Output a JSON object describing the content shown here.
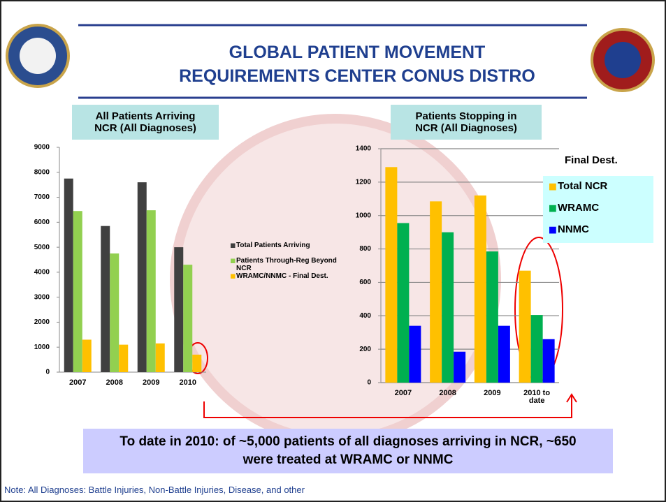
{
  "slide": {
    "title": "GLOBAL PATIENT MOVEMENT REQUIREMENTS CENTER CONUS DISTRO",
    "callout": "To date in 2010: of ~5,000 patients of all diagnoses arriving in NCR, ~650 were treated at WRAMC or NNMC",
    "note": "Note: All Diagnoses: Battle Injuries, Non-Battle Injuries, Disease, and other"
  },
  "chart_data": [
    {
      "type": "bar",
      "title": "All Patients Arriving NCR (All Diagnoses)",
      "categories": [
        "2007",
        "2008",
        "2009",
        "2010"
      ],
      "series": [
        {
          "name": "Total Patients Arriving",
          "color": "#404040",
          "values": [
            7750,
            5850,
            7600,
            5000
          ]
        },
        {
          "name": "Patients Through-Reg Beyond NCR",
          "color": "#92d050",
          "values": [
            6450,
            4750,
            6480,
            4300
          ]
        },
        {
          "name": "WRAMC/NNMC - Final Dest.",
          "color": "#ffc000",
          "values": [
            1300,
            1100,
            1150,
            700
          ]
        }
      ],
      "ylim": [
        0,
        9000
      ],
      "yticks": [
        0,
        1000,
        2000,
        3000,
        4000,
        5000,
        6000,
        7000,
        8000,
        9000
      ],
      "grid": false
    },
    {
      "type": "bar",
      "title": "Patients Stopping in NCR (All Diagnoses)",
      "categories": [
        "2007",
        "2008",
        "2009",
        "2010 to date"
      ],
      "legend_title": "Final Dest.",
      "series": [
        {
          "name": "Total NCR",
          "color": "#ffc000",
          "values": [
            1290,
            1085,
            1120,
            670
          ]
        },
        {
          "name": "WRAMC",
          "color": "#00b050",
          "values": [
            955,
            900,
            785,
            405
          ]
        },
        {
          "name": "NNMC",
          "color": "#0000ff",
          "values": [
            340,
            185,
            340,
            260
          ]
        }
      ],
      "ylim": [
        0,
        1400
      ],
      "yticks": [
        0,
        200,
        400,
        600,
        800,
        1000,
        1200,
        1400
      ],
      "grid": true
    }
  ]
}
